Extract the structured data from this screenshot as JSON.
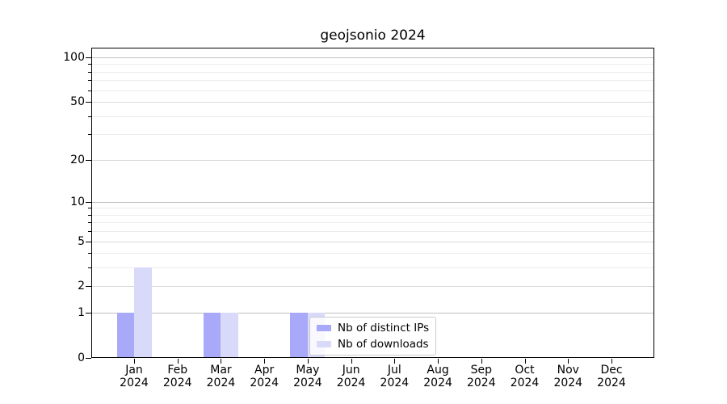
{
  "chart_data": {
    "type": "bar",
    "title": "geojsonio 2024",
    "categories": [
      "Jan 2024",
      "Feb 2024",
      "Mar 2024",
      "Apr 2024",
      "May 2024",
      "Jun 2024",
      "Jul 2024",
      "Aug 2024",
      "Sep 2024",
      "Oct 2024",
      "Nov 2024",
      "Dec 2024"
    ],
    "series": [
      {
        "name": "Nb of distinct IPs",
        "color": "#a9a9f9",
        "values": [
          1,
          0,
          1,
          0,
          1,
          0,
          0,
          0,
          0,
          0,
          0,
          0
        ]
      },
      {
        "name": "Nb of downloads",
        "color": "#d9d9f9",
        "values": [
          3,
          0,
          1,
          0,
          1,
          0,
          0,
          0,
          0,
          0,
          0,
          0
        ]
      }
    ],
    "xlabel": "",
    "ylabel": "",
    "yscale": "log1p",
    "ylim": [
      0,
      116
    ],
    "yticks": [
      0,
      1,
      2,
      5,
      10,
      20,
      50,
      100
    ],
    "yticks_major_emphasis": [
      1,
      10,
      100
    ],
    "yticks_minor": [
      3,
      4,
      6,
      7,
      8,
      9,
      30,
      40,
      60,
      70,
      80,
      90
    ],
    "grid": "both",
    "legend_position": "lower center"
  },
  "colors": {
    "bar_distinct_ips": "#a9a9f9",
    "bar_downloads": "#d9d9f9",
    "grid_major": "#bfbfbf",
    "grid_mid": "#dadada",
    "grid_minor": "#ececec",
    "axis": "#000000",
    "legend_border": "#cccccc"
  }
}
